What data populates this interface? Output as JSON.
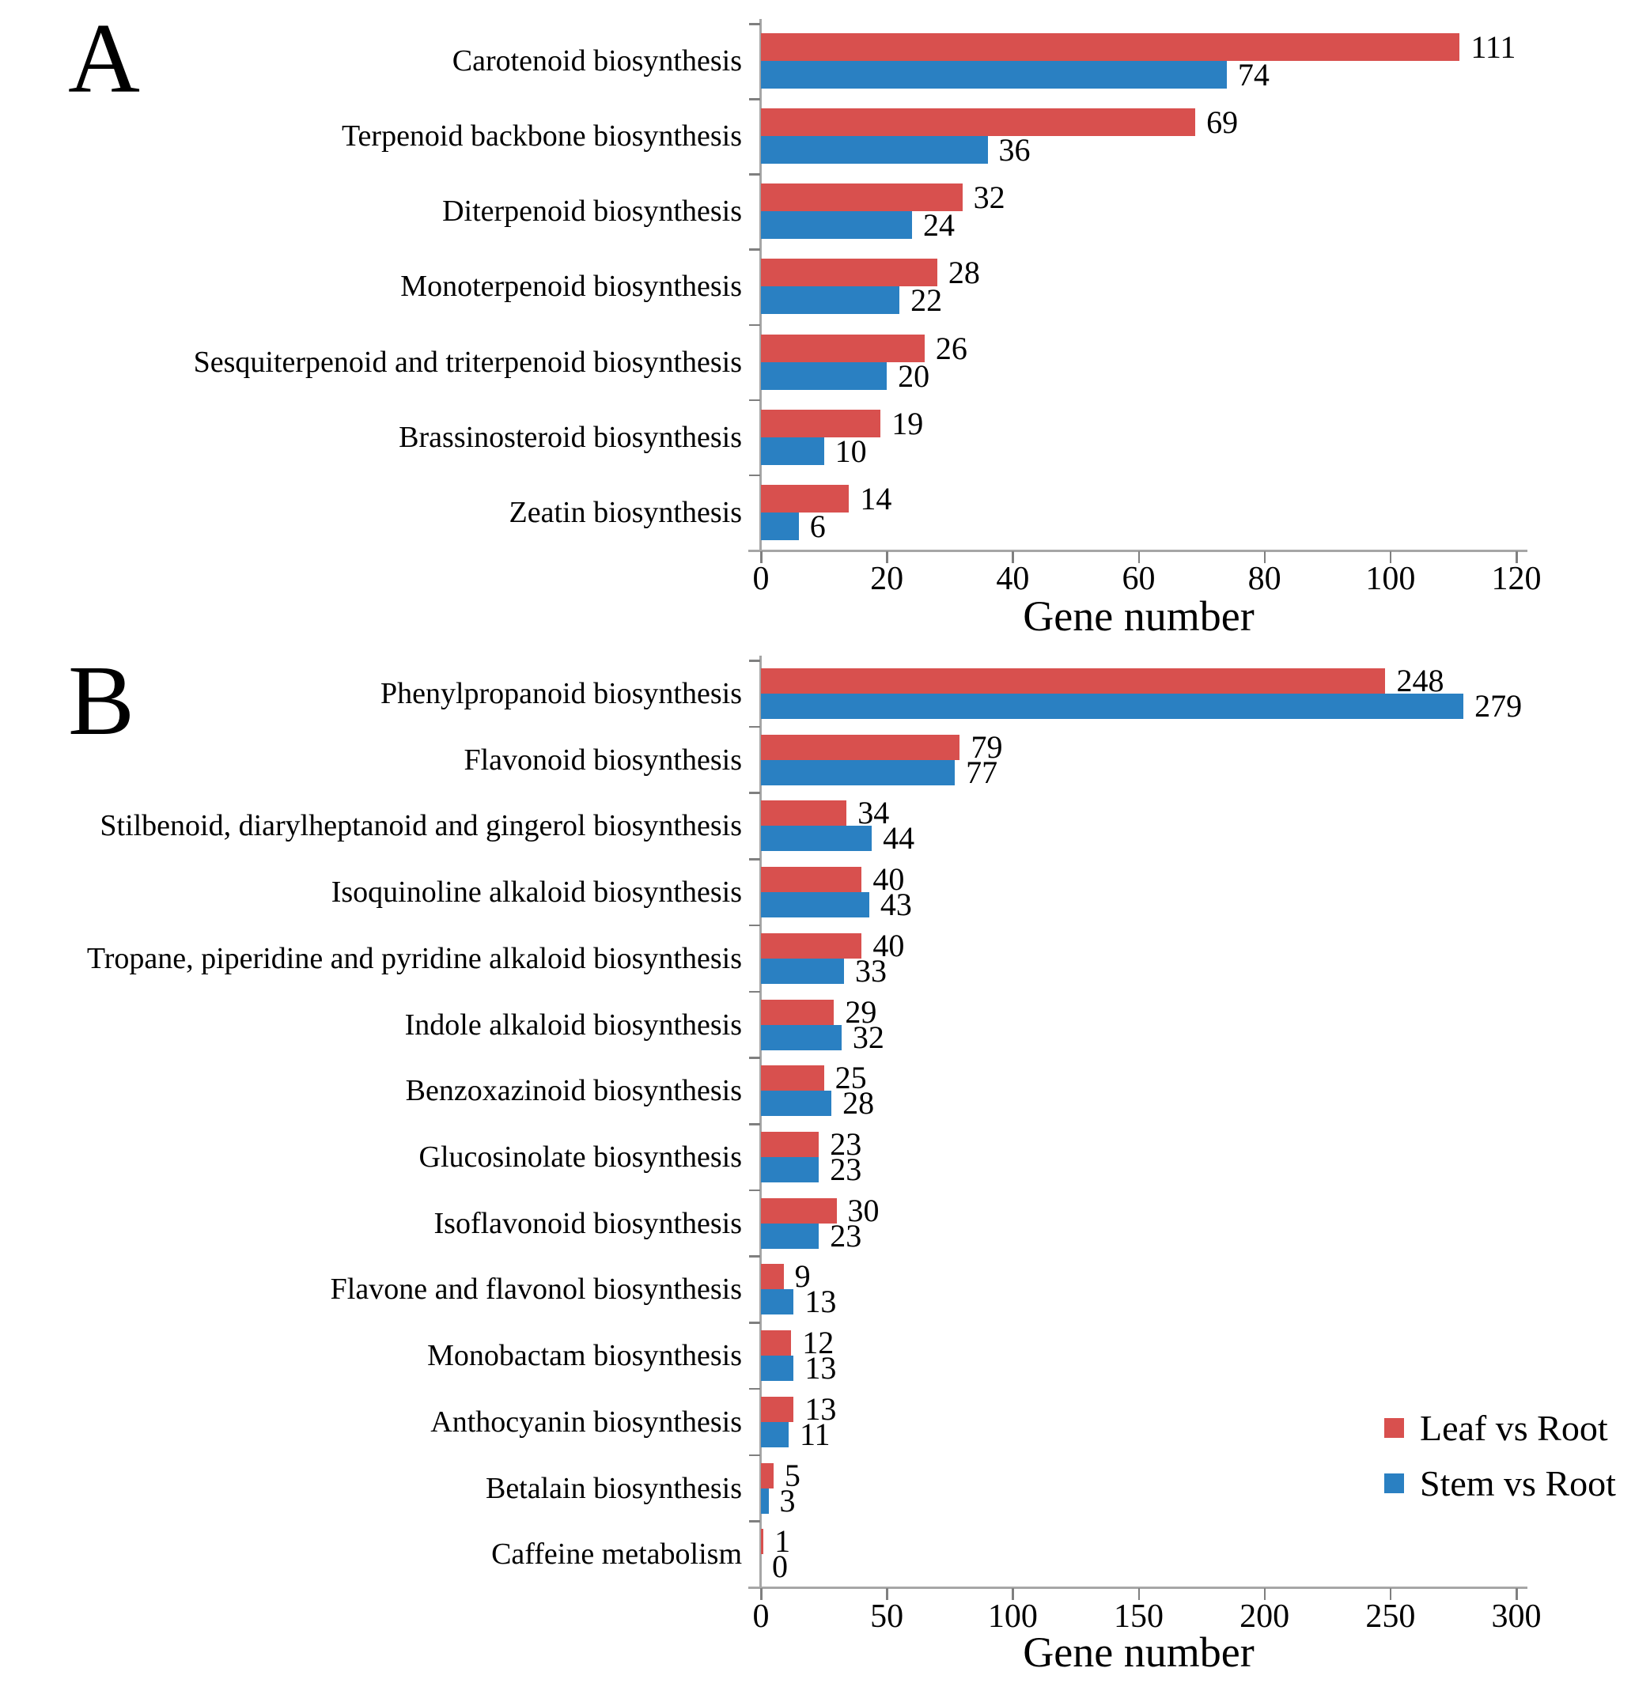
{
  "figure": {
    "background": "#ffffff",
    "colors": {
      "leaf": "#d8504e",
      "stem": "#2a80c2",
      "axis_line": "#a6a6a6",
      "tick_mark": "#7f7f7f",
      "text": "#000000"
    }
  },
  "legend": {
    "items": [
      {
        "series": "leaf",
        "label": "Leaf vs Root",
        "color": "#d8504e"
      },
      {
        "series": "stem",
        "label": "Stem vs Root",
        "color": "#2a80c2"
      }
    ]
  },
  "chart_data": [
    {
      "type": "bar",
      "panel": "A",
      "orientation": "horizontal",
      "xlabel": "Gene number",
      "xlim": [
        0,
        120
      ],
      "x_ticks": [
        0,
        20,
        40,
        60,
        80,
        100,
        120
      ],
      "grid": false,
      "legend_position": "none",
      "categories": [
        "Carotenoid biosynthesis",
        "Terpenoid backbone biosynthesis",
        "Diterpenoid biosynthesis",
        "Monoterpenoid biosynthesis",
        "Sesquiterpenoid and triterpenoid biosynthesis",
        "Brassinosteroid biosynthesis",
        "Zeatin biosynthesis"
      ],
      "series": [
        {
          "name": "Leaf vs Root",
          "values": [
            111,
            69,
            32,
            28,
            26,
            19,
            14
          ]
        },
        {
          "name": "Stem vs Root",
          "values": [
            74,
            36,
            24,
            22,
            20,
            10,
            6
          ]
        }
      ]
    },
    {
      "type": "bar",
      "panel": "B",
      "orientation": "horizontal",
      "xlabel": "Gene number",
      "xlim": [
        0,
        300
      ],
      "x_ticks": [
        0,
        50,
        100,
        150,
        200,
        250,
        300
      ],
      "grid": false,
      "legend_position": "right",
      "categories": [
        "Phenylpropanoid biosynthesis",
        "Flavonoid biosynthesis",
        "Stilbenoid, diarylheptanoid and gingerol biosynthesis",
        "Isoquinoline alkaloid biosynthesis",
        "Tropane, piperidine and pyridine alkaloid biosynthesis",
        "Indole alkaloid biosynthesis",
        "Benzoxazinoid biosynthesis",
        "Glucosinolate biosynthesis",
        "Isoflavonoid biosynthesis",
        "Flavone and flavonol biosynthesis",
        "Monobactam biosynthesis",
        "Anthocyanin biosynthesis",
        "Betalain biosynthesis",
        "Caffeine metabolism"
      ],
      "series": [
        {
          "name": "Leaf vs Root",
          "values": [
            248,
            79,
            34,
            40,
            40,
            29,
            25,
            23,
            30,
            9,
            12,
            13,
            5,
            1
          ]
        },
        {
          "name": "Stem vs Root",
          "values": [
            279,
            77,
            44,
            43,
            33,
            32,
            28,
            23,
            23,
            13,
            13,
            11,
            3,
            0
          ]
        }
      ]
    }
  ]
}
